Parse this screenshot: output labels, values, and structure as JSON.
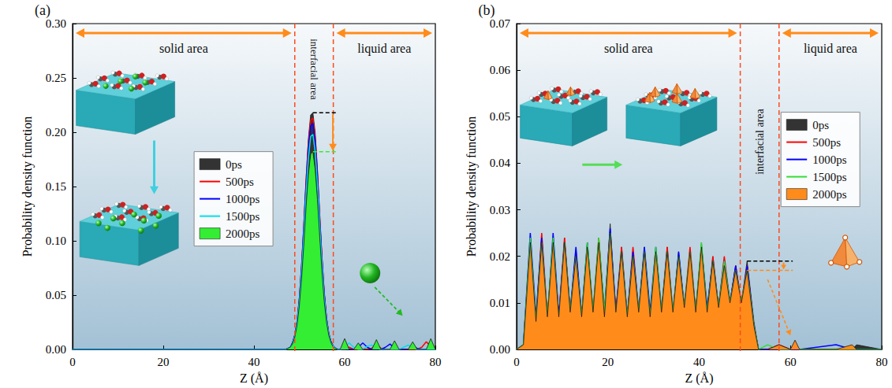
{
  "chart_data": [
    {
      "type": "line",
      "panel": "(a)",
      "x_label": "Z (Å)",
      "y_label": "Probability density function",
      "region_labels": {
        "solid": "solid area",
        "interface": "interfacial area",
        "liquid": "liquid area"
      },
      "interface": [
        49,
        57.5
      ],
      "xlim": [
        0,
        80
      ],
      "xticks": [
        0,
        20,
        40,
        60,
        80
      ],
      "ylim": [
        0,
        0.3
      ],
      "yticks": [
        {
          "value": 0,
          "label": "0.00"
        },
        {
          "value": 0.05,
          "label": "0.05"
        },
        {
          "value": 0.1,
          "label": "0.10"
        },
        {
          "value": 0.15,
          "label": "0.15"
        },
        {
          "value": 0.2,
          "label": "0.20"
        },
        {
          "value": 0.25,
          "label": "0.25"
        },
        {
          "value": 0.3,
          "label": "0.30"
        }
      ],
      "grid": false,
      "legend": "left",
      "x": [
        0,
        40,
        47,
        47.5,
        48,
        48.5,
        49,
        49.5,
        50,
        50.5,
        51,
        51.5,
        52,
        52.5,
        53,
        53.5,
        54,
        54.5,
        55,
        55.5,
        56,
        56.5,
        57,
        57.5,
        58,
        58.5,
        59,
        60,
        61,
        62,
        63,
        64,
        65,
        66,
        67,
        68,
        69,
        70,
        71,
        72,
        73,
        74,
        75,
        76,
        77,
        78,
        79,
        80
      ],
      "series": [
        {
          "name": "0ps",
          "type": "area",
          "color": "#333333",
          "values": [
            0,
            0,
            0,
            0.001,
            0.002,
            0.006,
            0.013,
            0.026,
            0.048,
            0.078,
            0.117,
            0.158,
            0.194,
            0.216,
            0.218,
            0.2,
            0.166,
            0.125,
            0.086,
            0.053,
            0.03,
            0.015,
            0.007,
            0.003,
            0.001,
            0,
            0,
            0,
            0,
            0,
            0,
            0,
            0,
            0,
            0,
            0,
            0,
            0,
            0,
            0,
            0,
            0,
            0,
            0,
            0,
            0,
            0,
            0
          ]
        },
        {
          "name": "500ps",
          "type": "line",
          "color": "#ff0000",
          "values": [
            0,
            0,
            0,
            0.001,
            0.002,
            0.006,
            0.013,
            0.026,
            0.046,
            0.077,
            0.114,
            0.155,
            0.19,
            0.211,
            0.213,
            0.195,
            0.162,
            0.122,
            0.084,
            0.052,
            0.029,
            0.015,
            0.007,
            0.003,
            0.001,
            0,
            0,
            0,
            0.002,
            0,
            0,
            0,
            0,
            0.001,
            0.005,
            0.001,
            0,
            0,
            0,
            0,
            0,
            0,
            0,
            0,
            0.002,
            0.007,
            0.003,
            0
          ]
        },
        {
          "name": "1000ps",
          "type": "line",
          "color": "#0000ff",
          "values": [
            0,
            0,
            0,
            0.001,
            0.002,
            0.006,
            0.013,
            0.025,
            0.045,
            0.075,
            0.112,
            0.151,
            0.185,
            0.206,
            0.208,
            0.191,
            0.159,
            0.119,
            0.082,
            0.051,
            0.028,
            0.014,
            0.007,
            0.003,
            0.001,
            0,
            0,
            0,
            0,
            0,
            0.002,
            0.006,
            0.002,
            0,
            0,
            0,
            0.002,
            0.005,
            0.001,
            0,
            0,
            0,
            0.003,
            0.001,
            0,
            0,
            0,
            0
          ]
        },
        {
          "name": "1500ps",
          "type": "line",
          "color": "#00e0ee",
          "values": [
            0,
            0,
            0,
            0.001,
            0.002,
            0.005,
            0.012,
            0.024,
            0.043,
            0.071,
            0.106,
            0.144,
            0.176,
            0.196,
            0.198,
            0.182,
            0.151,
            0.114,
            0.078,
            0.048,
            0.027,
            0.014,
            0.006,
            0.003,
            0.001,
            0,
            0,
            0.002,
            0.006,
            0.002,
            0,
            0,
            0.003,
            0.004,
            0.001,
            0,
            0,
            0,
            0,
            0,
            0.002,
            0.004,
            0.001,
            0,
            0,
            0,
            0,
            0
          ]
        },
        {
          "name": "2000ps",
          "type": "area",
          "color": "#33ee33",
          "values": [
            0,
            0,
            0,
            0.001,
            0.002,
            0.005,
            0.011,
            0.022,
            0.04,
            0.065,
            0.097,
            0.132,
            0.161,
            0.18,
            0.182,
            0.166,
            0.138,
            0.104,
            0.071,
            0.044,
            0.025,
            0.013,
            0.006,
            0.002,
            0.001,
            0,
            0,
            0.01,
            0,
            0,
            0.006,
            0,
            0,
            0,
            0.009,
            0,
            0,
            0,
            0.008,
            0,
            0,
            0,
            0.007,
            0,
            0,
            0,
            0.01,
            0
          ]
        }
      ],
      "peak_marks": [
        {
          "value": 0.218,
          "from": 53,
          "to": 58.5,
          "color": "#000000"
        },
        {
          "value": 0.182,
          "from": 53,
          "to": 58.5,
          "color": "#33ee33"
        }
      ]
    },
    {
      "type": "line",
      "panel": "(b)",
      "x_label": "Z (Å)",
      "y_label": "Probability density function",
      "region_labels": {
        "solid": "solid area",
        "interface": "interfacial area",
        "liquid": "liquid area"
      },
      "interface": [
        49,
        57.5
      ],
      "xlim": [
        0,
        80
      ],
      "xticks": [
        0,
        20,
        40,
        60,
        80
      ],
      "ylim": [
        0,
        0.07
      ],
      "yticks": [
        {
          "value": 0,
          "label": "0.00"
        },
        {
          "value": 0.01,
          "label": "0.01"
        },
        {
          "value": 0.02,
          "label": "0.02"
        },
        {
          "value": 0.03,
          "label": "0.03"
        },
        {
          "value": 0.04,
          "label": "0.04"
        },
        {
          "value": 0.05,
          "label": "0.05"
        },
        {
          "value": 0.06,
          "label": "0.06"
        },
        {
          "value": 0.07,
          "label": "0.07"
        }
      ],
      "grid": false,
      "legend": "right",
      "x": [
        0,
        1.5,
        3,
        4.25,
        5.5,
        6.75,
        8,
        9.25,
        10.5,
        11.75,
        13,
        14.25,
        15.5,
        16.75,
        18,
        19.25,
        20.5,
        21.75,
        23,
        24.25,
        25.5,
        26.75,
        28,
        29.25,
        30.5,
        31.75,
        33,
        34.25,
        35.5,
        36.75,
        38,
        39.25,
        40.5,
        41.75,
        43,
        44.25,
        45.5,
        46.75,
        48,
        49.25,
        50.5,
        52,
        53,
        55,
        57.5,
        60,
        61,
        62,
        70,
        73.5,
        74.5,
        80
      ],
      "series": [
        {
          "name": "0ps",
          "type": "area",
          "color": "#333333",
          "values": [
            0,
            0.001,
            0.024,
            0.006,
            0.024,
            0.007,
            0.024,
            0.006,
            0.024,
            0.008,
            0.021,
            0.007,
            0.023,
            0.008,
            0.024,
            0.008,
            0.027,
            0.007,
            0.022,
            0.007,
            0.021,
            0.008,
            0.022,
            0.007,
            0.021,
            0.008,
            0.022,
            0.008,
            0.021,
            0.009,
            0.021,
            0.008,
            0.023,
            0.008,
            0.02,
            0.009,
            0.019,
            0.01,
            0.018,
            0.01,
            0.019,
            0.006,
            0,
            0,
            0.001,
            0,
            0,
            0,
            0,
            0,
            0.001,
            0
          ]
        },
        {
          "name": "500ps",
          "type": "line",
          "color": "#ff0000",
          "values": [
            0,
            0.001,
            0.023,
            0.006,
            0.025,
            0.007,
            0.023,
            0.007,
            0.024,
            0.008,
            0.021,
            0.007,
            0.022,
            0.008,
            0.024,
            0.007,
            0.025,
            0.008,
            0.022,
            0.007,
            0.022,
            0.008,
            0.021,
            0.007,
            0.021,
            0.008,
            0.022,
            0.008,
            0.02,
            0.009,
            0.022,
            0.008,
            0.022,
            0.008,
            0.02,
            0.009,
            0.02,
            0.01,
            0.018,
            0.01,
            0.018,
            0.005,
            0,
            0,
            0.001,
            0,
            0,
            0,
            0,
            0,
            0,
            0
          ]
        },
        {
          "name": "1000ps",
          "type": "line",
          "color": "#0000ff",
          "values": [
            0,
            0.001,
            0.025,
            0.007,
            0.024,
            0.006,
            0.025,
            0.007,
            0.023,
            0.008,
            0.022,
            0.007,
            0.023,
            0.007,
            0.023,
            0.008,
            0.026,
            0.008,
            0.021,
            0.007,
            0.021,
            0.008,
            0.022,
            0.008,
            0.022,
            0.008,
            0.021,
            0.007,
            0.021,
            0.009,
            0.02,
            0.008,
            0.022,
            0.009,
            0.019,
            0.009,
            0.019,
            0.01,
            0.018,
            0.009,
            0.018,
            0.005,
            0,
            0,
            0,
            0,
            0,
            0,
            0.001,
            0,
            0,
            0
          ]
        },
        {
          "name": "1500ps",
          "type": "line",
          "color": "#33dd33",
          "values": [
            0,
            0.001,
            0.024,
            0.006,
            0.023,
            0.007,
            0.024,
            0.006,
            0.023,
            0.008,
            0.02,
            0.007,
            0.023,
            0.008,
            0.024,
            0.008,
            0.025,
            0.007,
            0.021,
            0.007,
            0.02,
            0.008,
            0.021,
            0.007,
            0.022,
            0.008,
            0.021,
            0.008,
            0.02,
            0.009,
            0.021,
            0.008,
            0.023,
            0.008,
            0.019,
            0.009,
            0.019,
            0.01,
            0.017,
            0.01,
            0.017,
            0.005,
            0,
            0.001,
            0,
            0,
            0.001,
            0,
            0,
            0,
            0,
            0
          ]
        },
        {
          "name": "2000ps",
          "type": "area",
          "color": "#ff8c1a",
          "values": [
            0,
            0.001,
            0.023,
            0.006,
            0.023,
            0.007,
            0.023,
            0.007,
            0.023,
            0.008,
            0.02,
            0.007,
            0.022,
            0.008,
            0.023,
            0.007,
            0.025,
            0.008,
            0.021,
            0.007,
            0.02,
            0.008,
            0.021,
            0.007,
            0.021,
            0.008,
            0.021,
            0.008,
            0.02,
            0.009,
            0.021,
            0.008,
            0.022,
            0.008,
            0.019,
            0.009,
            0.018,
            0.01,
            0.017,
            0.01,
            0.017,
            0.005,
            0,
            0,
            0.001,
            0,
            0.002,
            0,
            0,
            0.001,
            0,
            0
          ]
        }
      ],
      "peak_marks": [
        {
          "value": 0.019,
          "from": 50.5,
          "to": 60.5,
          "color": "#000000"
        },
        {
          "value": 0.017,
          "from": 50.5,
          "to": 60.5,
          "color": "#ff8c1a"
        }
      ]
    }
  ]
}
